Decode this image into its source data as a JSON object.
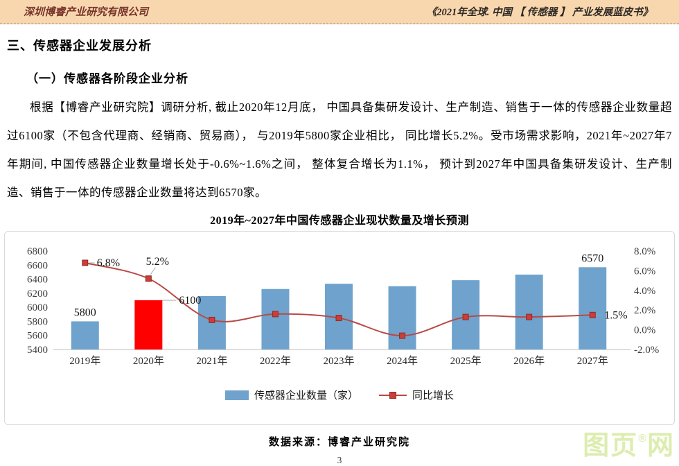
{
  "page_header": {
    "company": "深圳博睿产业研究有限公司",
    "book_title": "《2021年全球. 中国 【 传感器 】 产业发展蓝皮书》"
  },
  "headings": {
    "h1": "三、传感器企业发展分析",
    "h2": "（一）传感器各阶段企业分析"
  },
  "paragraph": "根据【博睿产业研究院】调研分析, 截止2020年12月底， 中国具备集研发设计、生产制造、销售于一体的传感器企业数量超过6100家（不包含代理商、经销商、贸易商）， 与2019年5800家企业相比， 同比增长5.2%。受市场需求影响，2021年~2027年7年期间, 中国传感器企业数量增长处于-0.6%~1.6%之间， 整体复合增长为1.1%， 预计到2027年中国具备集研发设计、生产制造、销售于一体的传感器企业数量将达到6570家。",
  "chart_data": {
    "type": "combo (bar + line)",
    "title": "2019年~2027年中国传感器企业现状数量及增长预测",
    "categories": [
      "2019年",
      "2020年",
      "2021年",
      "2022年",
      "2023年",
      "2024年",
      "2025年",
      "2026年",
      "2027年"
    ],
    "series": [
      {
        "name": "传感器企业数量（家）",
        "type": "bar",
        "axis": "left",
        "values": [
          5800,
          6100,
          6160,
          6260,
          6335,
          6300,
          6385,
          6465,
          6570
        ]
      },
      {
        "name": "同比增长",
        "type": "line",
        "axis": "right",
        "unit": "%",
        "values": [
          6.8,
          5.2,
          1.0,
          1.6,
          1.2,
          -0.6,
          1.3,
          1.3,
          1.5
        ]
      }
    ],
    "point_colors": {
      "1": "#fe0000"
    },
    "data_labels": [
      {
        "series": "bar",
        "index": 0,
        "text": "5800",
        "pos": "above"
      },
      {
        "series": "bar",
        "index": 1,
        "text": "6100",
        "pos": "right-leader"
      },
      {
        "series": "bar",
        "index": 8,
        "text": "6570",
        "pos": "above"
      },
      {
        "series": "line",
        "index": 0,
        "text": "6.8%",
        "pos": "right"
      },
      {
        "series": "line",
        "index": 1,
        "text": "5.2%",
        "pos": "above"
      },
      {
        "series": "line",
        "index": 8,
        "text": "1.5%",
        "pos": "right"
      }
    ],
    "left_axis": {
      "min": 5400,
      "max": 6800,
      "ticks": [
        "5400",
        "5600",
        "5800",
        "6000",
        "6200",
        "6400",
        "6600",
        "6800"
      ]
    },
    "right_axis": {
      "min": -2,
      "max": 8,
      "ticks": [
        "-2.0%",
        "0.0%",
        "2.0%",
        "4.0%",
        "6.0%",
        "8.0%"
      ]
    },
    "colors": {
      "bar": "#6fa3cd",
      "bar_highlight": "#fe0000",
      "line": "#b84a45",
      "marker": "#cd3d38",
      "marker_border": "#8e2a26"
    },
    "legend_position": "bottom",
    "grid": false
  },
  "footer": {
    "source": "数据来源：博睿产业研究院"
  },
  "page_number": "3",
  "watermark": {
    "text_left": "图页",
    "reg": "®",
    "text_right": "网"
  }
}
